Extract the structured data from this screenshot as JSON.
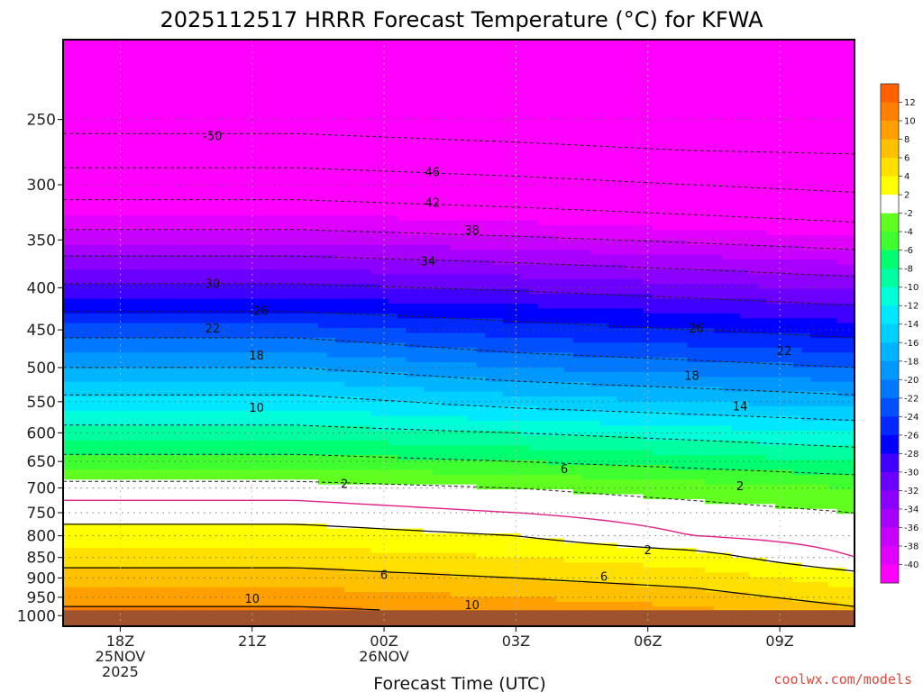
{
  "chart_data": {
    "type": "heatmap",
    "title": "2025112517 HRRR Forecast Temperature (°C) for KFWA",
    "xlabel": "Forecast Time (UTC)",
    "ylabel": "",
    "credit": "coolwx.com/models",
    "x_range_hours": [
      -0.3,
      17.7
    ],
    "y_axis": {
      "scale": "log",
      "unit": "hPa",
      "ylim": [
        1030,
        200
      ],
      "inverted": true,
      "ticks": [
        250,
        300,
        350,
        400,
        450,
        500,
        550,
        600,
        650,
        700,
        750,
        800,
        850,
        900,
        950,
        1000
      ]
    },
    "x_ticks": [
      {
        "hour": 1,
        "label": "18Z",
        "line2": "25NOV",
        "line3": "2025"
      },
      {
        "hour": 4,
        "label": "21Z"
      },
      {
        "hour": 7,
        "label": "00Z",
        "line2": "26NOV"
      },
      {
        "hour": 10,
        "label": "03Z"
      },
      {
        "hour": 13,
        "label": "06Z"
      },
      {
        "hour": 16,
        "label": "09Z"
      }
    ],
    "grid": true,
    "colorbar": {
      "placement": "right",
      "levels": [
        -40,
        -38,
        -36,
        -34,
        -32,
        -30,
        -28,
        -26,
        -24,
        -22,
        -20,
        -18,
        -16,
        -14,
        -12,
        -10,
        -8,
        -6,
        -4,
        -2,
        2,
        4,
        6,
        8,
        10,
        12
      ],
      "colors": [
        "#ff00ff",
        "#e000ff",
        "#c800ff",
        "#a800ff",
        "#8c00ff",
        "#6c00ff",
        "#4000ff",
        "#0000ff",
        "#0028ff",
        "#0050ff",
        "#0078ff",
        "#0098ff",
        "#00b4ff",
        "#00d0ff",
        "#00e8ff",
        "#00ffd8",
        "#00ffa0",
        "#00ff70",
        "#40ff30",
        "#60ff20",
        "#ffffff",
        "#ffff00",
        "#ffe000",
        "#ffc000",
        "#ffa000",
        "#ff8000",
        "#ff6000"
      ]
    },
    "ground_color": "#a0522d",
    "ground_level_hpa": 985,
    "temperature_profile": {
      "hours": [
        -0.3,
        5,
        10,
        14,
        17.7
      ],
      "pressure": [
        220,
        260,
        300,
        340,
        380,
        420,
        460,
        500,
        550,
        600,
        650,
        700,
        750,
        800,
        850,
        900,
        950,
        1000
      ],
      "temps": [
        [
          -52,
          -52,
          -53,
          -53,
          -54
        ],
        [
          -50,
          -50,
          -51,
          -52,
          -52
        ],
        [
          -44,
          -44,
          -45,
          -46,
          -47
        ],
        [
          -38,
          -38,
          -39,
          -40,
          -41
        ],
        [
          -32,
          -32,
          -33,
          -34,
          -35
        ],
        [
          -27,
          -27,
          -28,
          -29,
          -30
        ],
        [
          -22,
          -22,
          -24,
          -25,
          -26
        ],
        [
          -18,
          -18,
          -20,
          -21,
          -22
        ],
        [
          -13,
          -13,
          -15,
          -16,
          -17
        ],
        [
          -9,
          -9,
          -10,
          -11,
          -12
        ],
        [
          -5,
          -5,
          -6,
          -7,
          -8
        ],
        [
          -1,
          -1,
          -2,
          -3,
          -4
        ],
        [
          1,
          1,
          0,
          -1,
          -2
        ],
        [
          3,
          3,
          2,
          0,
          -1
        ],
        [
          5,
          5,
          4,
          3,
          0
        ],
        [
          7,
          7,
          6,
          5,
          3
        ],
        [
          9,
          9,
          8,
          7,
          5
        ],
        [
          11,
          11,
          10,
          9,
          7
        ]
      ]
    },
    "contour_labels": [
      {
        "value": "-50",
        "hour": 3.1,
        "hpa": 262
      },
      {
        "value": "46",
        "hour": 8.1,
        "hpa": 290
      },
      {
        "value": "42",
        "hour": 8.1,
        "hpa": 316
      },
      {
        "value": "38",
        "hour": 9.0,
        "hpa": 341
      },
      {
        "value": "34",
        "hour": 8.0,
        "hpa": 372
      },
      {
        "value": "30",
        "hour": 3.1,
        "hpa": 396
      },
      {
        "value": "26",
        "hour": 4.2,
        "hpa": 427
      },
      {
        "value": "22",
        "hour": 3.1,
        "hpa": 449
      },
      {
        "value": "18",
        "hour": 4.1,
        "hpa": 484
      },
      {
        "value": "10",
        "hour": 4.1,
        "hpa": 560
      },
      {
        "value": "26",
        "hour": 14.1,
        "hpa": 449
      },
      {
        "value": "22",
        "hour": 16.1,
        "hpa": 478
      },
      {
        "value": "18",
        "hour": 14.0,
        "hpa": 512
      },
      {
        "value": "14",
        "hour": 15.1,
        "hpa": 558
      },
      {
        "value": "6",
        "hour": 11.1,
        "hpa": 665
      },
      {
        "value": "2",
        "hour": 6.1,
        "hpa": 693
      },
      {
        "value": "2",
        "hour": 15.1,
        "hpa": 697
      },
      {
        "value": "2",
        "hour": 13.0,
        "hpa": 834
      },
      {
        "value": "6",
        "hour": 7.0,
        "hpa": 893
      },
      {
        "value": "6",
        "hour": 12.0,
        "hpa": 898
      },
      {
        "value": "10",
        "hour": 4.0,
        "hpa": 955
      },
      {
        "value": "10",
        "hour": 9.0,
        "hpa": 972
      }
    ]
  }
}
